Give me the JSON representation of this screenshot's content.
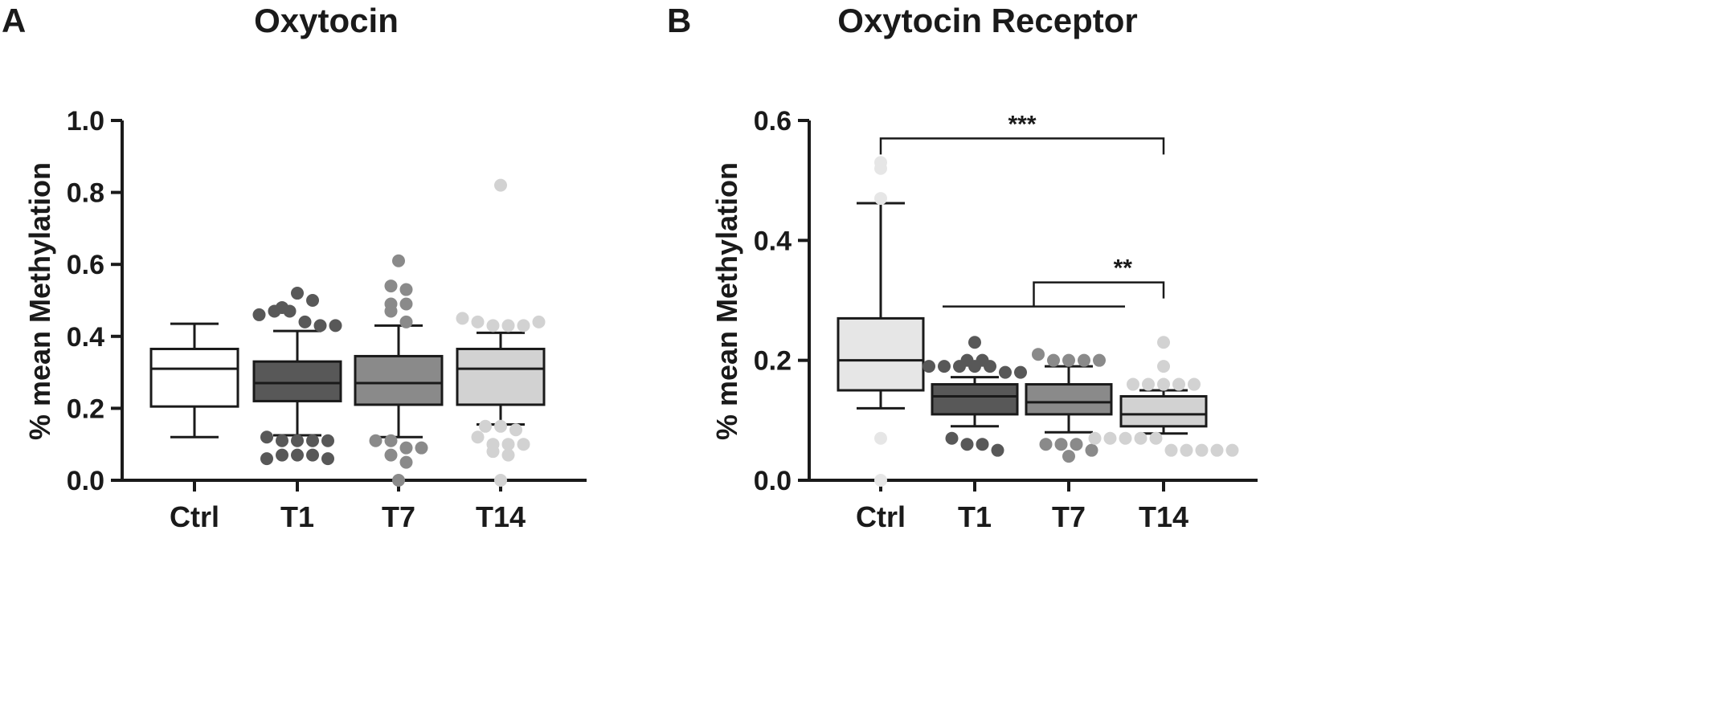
{
  "panels": [
    {
      "letter": "A",
      "chart_data": {
        "type": "box",
        "title": "Oxytocin",
        "ylabel": "% mean Methylation",
        "xlabel": "",
        "ylim": [
          0,
          1.0
        ],
        "yticks": [
          "0.0",
          "0.2",
          "0.4",
          "0.6",
          "0.8",
          "1.0"
        ],
        "categories": [
          "Ctrl",
          "T1",
          "T7",
          "T14"
        ],
        "colors": [
          "#ffffff",
          "#585858",
          "#8a8a8a",
          "#d2d2d2"
        ],
        "point_colors": [
          "#ffffff",
          "#585858",
          "#8a8a8a",
          "#d2d2d2"
        ],
        "boxes": [
          {
            "category": "Ctrl",
            "whisker_low": 0.12,
            "q1": 0.205,
            "median": 0.31,
            "q3": 0.365,
            "whisker_high": 0.435,
            "outliers": []
          },
          {
            "category": "T1",
            "whisker_low": 0.125,
            "q1": 0.22,
            "median": 0.27,
            "q3": 0.33,
            "whisker_high": 0.415,
            "outliers": [
              0.48,
              0.46,
              0.47,
              0.47,
              0.52,
              0.44,
              0.5,
              0.43,
              0.43,
              0.12,
              0.11,
              0.11,
              0.11,
              0.11,
              0.06,
              0.07,
              0.07,
              0.07,
              0.06
            ]
          },
          {
            "category": "T7",
            "whisker_low": 0.12,
            "q1": 0.21,
            "median": 0.27,
            "q3": 0.345,
            "whisker_high": 0.43,
            "outliers": [
              0.61,
              0.54,
              0.53,
              0.47,
              0.49,
              0.49,
              0.44,
              0.11,
              0.11,
              0.09,
              0.09,
              0.07,
              0.05,
              0.0
            ]
          },
          {
            "category": "T14",
            "whisker_low": 0.155,
            "q1": 0.21,
            "median": 0.31,
            "q3": 0.365,
            "whisker_high": 0.41,
            "outliers": [
              0.82,
              0.45,
              0.44,
              0.43,
              0.43,
              0.43,
              0.44,
              0.15,
              0.15,
              0.14,
              0.12,
              0.1,
              0.1,
              0.1,
              0.08,
              0.07,
              0.0
            ]
          }
        ],
        "significance": []
      }
    },
    {
      "letter": "B",
      "chart_data": {
        "type": "box",
        "title": "Oxytocin Receptor",
        "ylabel": "% mean Methylation",
        "xlabel": "",
        "ylim": [
          0,
          0.6
        ],
        "yticks": [
          "0.0",
          "0.2",
          "0.4",
          "0.6"
        ],
        "categories": [
          "Ctrl",
          "T1",
          "T7",
          "T14"
        ],
        "colors": [
          "#e6e6e6",
          "#585858",
          "#8a8a8a",
          "#d2d2d2"
        ],
        "point_colors": [
          "#e6e6e6",
          "#585858",
          "#8a8a8a",
          "#d2d2d2"
        ],
        "boxes": [
          {
            "category": "Ctrl",
            "whisker_low": 0.12,
            "q1": 0.15,
            "median": 0.2,
            "q3": 0.27,
            "whisker_high": 0.462,
            "outliers": [
              0.53,
              0.52,
              0.47,
              0.07,
              0.0
            ]
          },
          {
            "category": "T1",
            "whisker_low": 0.09,
            "q1": 0.11,
            "median": 0.14,
            "q3": 0.16,
            "whisker_high": 0.172,
            "outliers": [
              0.23,
              0.2,
              0.2,
              0.19,
              0.19,
              0.19,
              0.19,
              0.19,
              0.18,
              0.18,
              0.07,
              0.06,
              0.06,
              0.05
            ]
          },
          {
            "category": "T7",
            "whisker_low": 0.08,
            "q1": 0.11,
            "median": 0.13,
            "q3": 0.16,
            "whisker_high": 0.19,
            "outliers": [
              0.21,
              0.2,
              0.2,
              0.2,
              0.2,
              0.06,
              0.06,
              0.06,
              0.05,
              0.04
            ]
          },
          {
            "category": "T14",
            "whisker_low": 0.078,
            "q1": 0.09,
            "median": 0.11,
            "q3": 0.14,
            "whisker_high": 0.15,
            "outliers": [
              0.23,
              0.19,
              0.16,
              0.16,
              0.16,
              0.16,
              0.16,
              0.07,
              0.07,
              0.07,
              0.07,
              0.07,
              0.05,
              0.05,
              0.05,
              0.05,
              0.05
            ]
          }
        ],
        "significance": [
          {
            "from": "Ctrl",
            "to": "T14",
            "y": 0.57,
            "label": "***"
          },
          {
            "from_group": [
              "T1",
              "T7"
            ],
            "to": "T14",
            "y": 0.33,
            "label": "**"
          }
        ]
      }
    }
  ]
}
